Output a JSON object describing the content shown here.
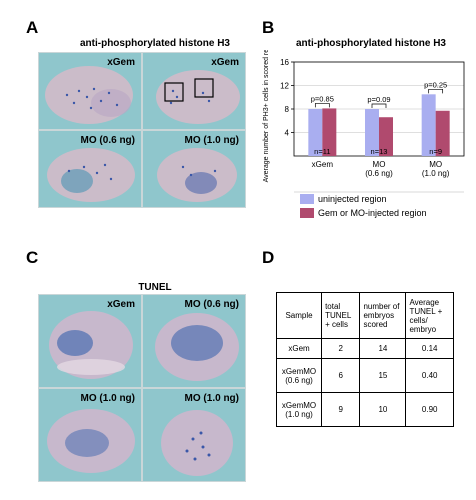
{
  "panels": {
    "A": {
      "label": "A",
      "title": "anti-phosphorylated histone H3",
      "images": [
        {
          "caption": "xGem"
        },
        {
          "caption": "xGem"
        },
        {
          "caption": "MO (0.6 ng)"
        },
        {
          "caption": "MO (1.0 ng)"
        }
      ]
    },
    "B": {
      "label": "B",
      "title": "anti-phosphorylated histone H3",
      "legend": [
        "uninjected region",
        "Gem or MO-injected region"
      ]
    },
    "C": {
      "label": "C",
      "title": "TUNEL",
      "images": [
        {
          "caption": "xGem"
        },
        {
          "caption": "MO (0.6 ng)"
        },
        {
          "caption": "MO (1.0 ng)"
        },
        {
          "caption": "MO (1.0 ng)"
        }
      ]
    },
    "D": {
      "label": "D",
      "headers": [
        "Sample",
        "total TUNEL + cells",
        "number of embryos scored",
        "Average TUNEL + cells/ embryo"
      ],
      "rows": [
        [
          "xGem",
          "2",
          "14",
          "0.14"
        ],
        [
          "xGemMO (0.6 ng)",
          "6",
          "15",
          "0.40"
        ],
        [
          "xGemMO (1.0 ng)",
          "9",
          "10",
          "0.90"
        ]
      ]
    }
  },
  "colors": {
    "uninjected": "#a9aef0",
    "injected": "#b04a6e",
    "photo_bg": "#8fc6cc",
    "embryo": "#c9b8c8",
    "stain": "#3a57a8"
  },
  "chart_data": {
    "type": "bar",
    "title": "anti-phosphorylated histone H3",
    "ylabel": "Average number of PH3+ cells in scored region",
    "ylim": [
      0,
      16
    ],
    "yticks": [
      4,
      8,
      12,
      16
    ],
    "categories": [
      "xGem",
      "MO (0.6 ng)",
      "MO (1.0 ng)"
    ],
    "series": [
      {
        "name": "uninjected region",
        "values": [
          8.0,
          8.0,
          10.5
        ]
      },
      {
        "name": "Gem or MO-injected region",
        "values": [
          8.1,
          6.6,
          7.7
        ]
      }
    ],
    "n_labels": [
      "n=11",
      "n=13",
      "n=9"
    ],
    "p_labels": [
      "p=0.85",
      "p=0.09",
      "p=0.25"
    ]
  }
}
